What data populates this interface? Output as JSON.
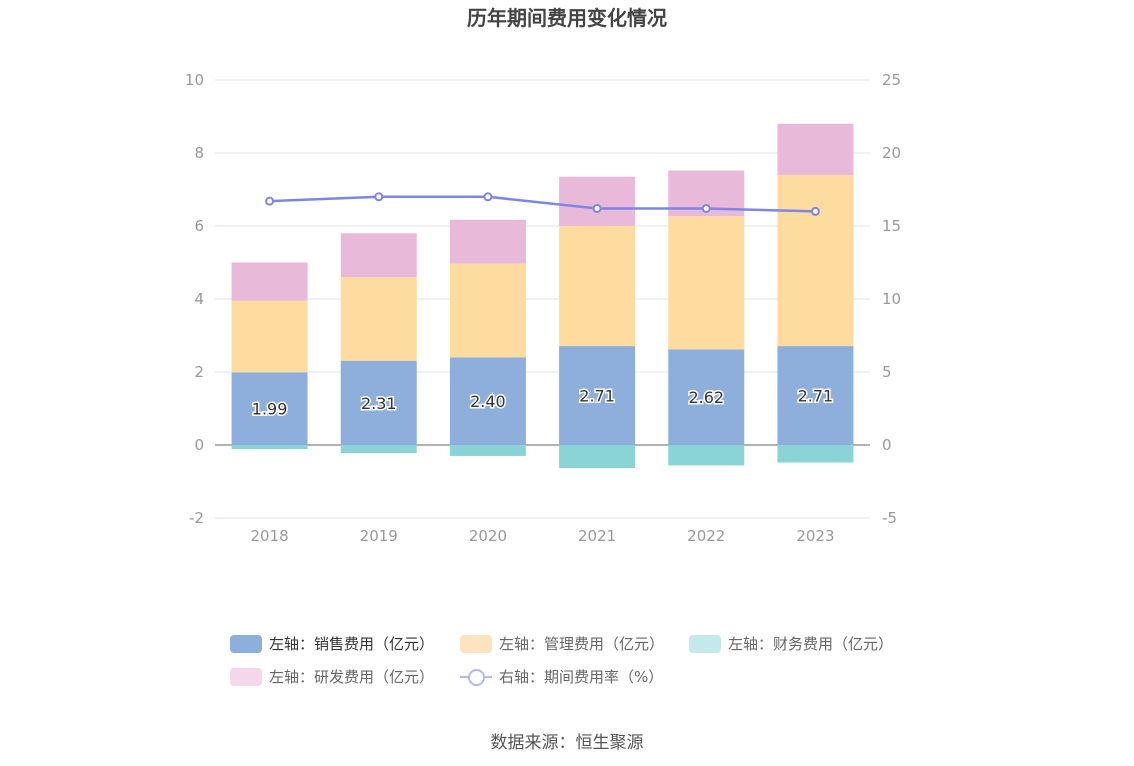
{
  "title": "历年期间费用变化情况",
  "source": "数据来源：恒生聚源",
  "chart_data": {
    "type": "bar",
    "stacked": true,
    "categories": [
      "2018",
      "2019",
      "2020",
      "2021",
      "2022",
      "2023"
    ],
    "left_axis": {
      "ylim": [
        -2,
        10
      ],
      "ticks": [
        "-2",
        "0",
        "2",
        "4",
        "6",
        "8",
        "10"
      ]
    },
    "right_axis": {
      "ylim": [
        -5,
        25
      ],
      "ticks": [
        "-5",
        "0",
        "5",
        "10",
        "15",
        "20",
        "25"
      ]
    },
    "grid": true,
    "legend_position": "bottom",
    "series": [
      {
        "name": "左轴：销售费用（亿元）",
        "axis": "left",
        "type": "bar",
        "color": "#8eaedb",
        "values": [
          1.99,
          2.31,
          2.4,
          2.71,
          2.62,
          2.71
        ],
        "labels": [
          "1.99",
          "2.31",
          "2.40",
          "2.71",
          "2.62",
          "2.71"
        ]
      },
      {
        "name": "左轴：管理费用（亿元）",
        "axis": "left",
        "type": "bar",
        "color": "#fedb9f",
        "values": [
          1.96,
          2.29,
          2.57,
          3.29,
          3.65,
          4.69
        ]
      },
      {
        "name": "左轴：财务费用（亿元）",
        "axis": "left",
        "type": "bar",
        "color": "#8ad4d6",
        "values": [
          -0.11,
          -0.22,
          -0.3,
          -0.63,
          -0.56,
          -0.48
        ]
      },
      {
        "name": "左轴：研发费用（亿元）",
        "axis": "left",
        "type": "bar",
        "color": "#e8b9d9",
        "values": [
          1.05,
          1.2,
          1.2,
          1.35,
          1.25,
          1.4
        ]
      },
      {
        "name": "右轴：期间费用率（%）",
        "axis": "right",
        "type": "line",
        "color": "#7d86e8",
        "values": [
          16.7,
          17.0,
          17.0,
          16.2,
          16.2,
          16.0
        ]
      }
    ]
  },
  "legend_colors": {
    "sales": "#8eaedb",
    "admin": "#fde4bf",
    "finance": "#c3e9ea",
    "rnd": "#f4d7eb"
  }
}
